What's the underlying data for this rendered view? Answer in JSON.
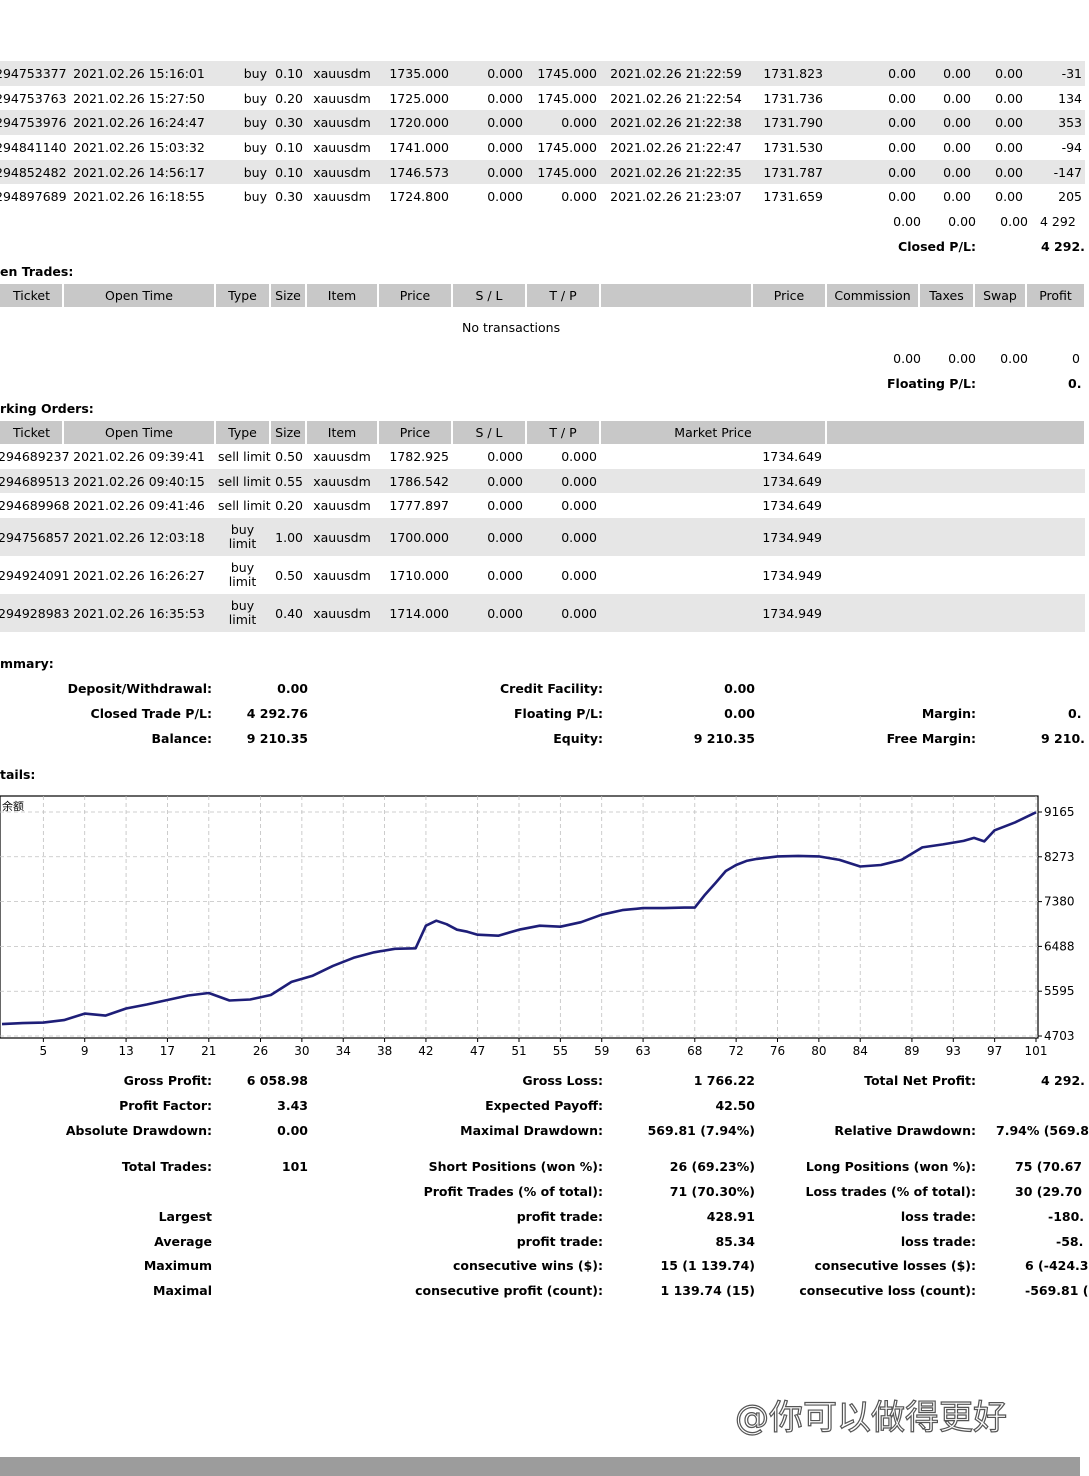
{
  "closed_trades": {
    "rows": [
      {
        "ticket": "294753377",
        "open_time": "2021.02.26 15:16:01",
        "type": "buy",
        "size": "0.10",
        "item": "xauusdm",
        "price": "1735.000",
        "sl": "0.000",
        "tp": "1745.000",
        "close_time": "2021.02.26 21:22:59",
        "close_price": "1731.823",
        "commission": "0.00",
        "taxes": "0.00",
        "swap": "0.00",
        "profit": "-31"
      },
      {
        "ticket": "294753763",
        "open_time": "2021.02.26 15:27:50",
        "type": "buy",
        "size": "0.20",
        "item": "xauusdm",
        "price": "1725.000",
        "sl": "0.000",
        "tp": "1745.000",
        "close_time": "2021.02.26 21:22:54",
        "close_price": "1731.736",
        "commission": "0.00",
        "taxes": "0.00",
        "swap": "0.00",
        "profit": "134"
      },
      {
        "ticket": "294753976",
        "open_time": "2021.02.26 16:24:47",
        "type": "buy",
        "size": "0.30",
        "item": "xauusdm",
        "price": "1720.000",
        "sl": "0.000",
        "tp": "0.000",
        "close_time": "2021.02.26 21:22:38",
        "close_price": "1731.790",
        "commission": "0.00",
        "taxes": "0.00",
        "swap": "0.00",
        "profit": "353"
      },
      {
        "ticket": "294841140",
        "open_time": "2021.02.26 15:03:32",
        "type": "buy",
        "size": "0.10",
        "item": "xauusdm",
        "price": "1741.000",
        "sl": "0.000",
        "tp": "1745.000",
        "close_time": "2021.02.26 21:22:47",
        "close_price": "1731.530",
        "commission": "0.00",
        "taxes": "0.00",
        "swap": "0.00",
        "profit": "-94"
      },
      {
        "ticket": "294852482",
        "open_time": "2021.02.26 14:56:17",
        "type": "buy",
        "size": "0.10",
        "item": "xauusdm",
        "price": "1746.573",
        "sl": "0.000",
        "tp": "1745.000",
        "close_time": "2021.02.26 21:22:35",
        "close_price": "1731.787",
        "commission": "0.00",
        "taxes": "0.00",
        "swap": "0.00",
        "profit": "-147"
      },
      {
        "ticket": "294897689",
        "open_time": "2021.02.26 16:18:55",
        "type": "buy",
        "size": "0.30",
        "item": "xauusdm",
        "price": "1724.800",
        "sl": "0.000",
        "tp": "0.000",
        "close_time": "2021.02.26 21:23:07",
        "close_price": "1731.659",
        "commission": "0.00",
        "taxes": "0.00",
        "swap": "0.00",
        "profit": "205"
      }
    ],
    "totals": {
      "commission": "0.00",
      "taxes": "0.00",
      "swap": "0.00",
      "profit": "4 292"
    },
    "closed_pl_label": "Closed P/L:",
    "closed_pl_value": "4 292."
  },
  "open_trades": {
    "title": "en Trades:",
    "headers": {
      "ticket": "Ticket",
      "open_time": "Open Time",
      "type": "Type",
      "size": "Size",
      "item": "Item",
      "price": "Price",
      "sl": "S / L",
      "tp": "T / P",
      "price2": "Price",
      "commission": "Commission",
      "taxes": "Taxes",
      "swap": "Swap",
      "profit": "Profit"
    },
    "empty_text": "No transactions",
    "totals": {
      "commission": "0.00",
      "taxes": "0.00",
      "swap": "0.00",
      "profit": "0"
    },
    "floating_pl_label": "Floating P/L:",
    "floating_pl_value": "0."
  },
  "working_orders": {
    "title": "rking Orders:",
    "headers": {
      "ticket": "Ticket",
      "open_time": "Open Time",
      "type": "Type",
      "size": "Size",
      "item": "Item",
      "price": "Price",
      "sl": "S / L",
      "tp": "T / P",
      "market_price": "Market Price"
    },
    "rows": [
      {
        "ticket": "294689237",
        "open_time": "2021.02.26 09:39:41",
        "type": "sell limit",
        "size": "0.50",
        "item": "xauusdm",
        "price": "1782.925",
        "sl": "0.000",
        "tp": "0.000",
        "market_price": "1734.649"
      },
      {
        "ticket": "294689513",
        "open_time": "2021.02.26 09:40:15",
        "type": "sell limit",
        "size": "0.55",
        "item": "xauusdm",
        "price": "1786.542",
        "sl": "0.000",
        "tp": "0.000",
        "market_price": "1734.649"
      },
      {
        "ticket": "294689968",
        "open_time": "2021.02.26 09:41:46",
        "type": "sell limit",
        "size": "0.20",
        "item": "xauusdm",
        "price": "1777.897",
        "sl": "0.000",
        "tp": "0.000",
        "market_price": "1734.649"
      },
      {
        "ticket": "294756857",
        "open_time": "2021.02.26 12:03:18",
        "type": "buy limit",
        "size": "1.00",
        "item": "xauusdm",
        "price": "1700.000",
        "sl": "0.000",
        "tp": "0.000",
        "market_price": "1734.949"
      },
      {
        "ticket": "294924091",
        "open_time": "2021.02.26 16:26:27",
        "type": "buy limit",
        "size": "0.50",
        "item": "xauusdm",
        "price": "1710.000",
        "sl": "0.000",
        "tp": "0.000",
        "market_price": "1734.949"
      },
      {
        "ticket": "294928983",
        "open_time": "2021.02.26 16:35:53",
        "type": "buy limit",
        "size": "0.40",
        "item": "xauusdm",
        "price": "1714.000",
        "sl": "0.000",
        "tp": "0.000",
        "market_price": "1734.949"
      }
    ]
  },
  "summary": {
    "title": "mmary:",
    "deposit_label": "Deposit/Withdrawal:",
    "deposit_value": "0.00",
    "credit_label": "Credit Facility:",
    "credit_value": "0.00",
    "closed_label": "Closed Trade P/L:",
    "closed_value": "4 292.76",
    "floating_label": "Floating P/L:",
    "floating_value": "0.00",
    "margin_label": "Margin:",
    "margin_value": "0.",
    "balance_label": "Balance:",
    "balance_value": "9 210.35",
    "equity_label": "Equity:",
    "equity_value": "9 210.35",
    "free_margin_label": "Free Margin:",
    "free_margin_value": "9 210."
  },
  "details": {
    "title": "tails:",
    "chart_corner_label": "余额"
  },
  "chart_data": {
    "type": "line",
    "title": "",
    "xlabel": "",
    "ylabel": "",
    "x_ticks": [
      "5",
      "9",
      "13",
      "17",
      "21",
      "26",
      "30",
      "34",
      "38",
      "42",
      "47",
      "51",
      "55",
      "59",
      "63",
      "68",
      "72",
      "76",
      "80",
      "84",
      "89",
      "93",
      "97",
      "101"
    ],
    "y_ticks": [
      "9165",
      "8273",
      "7380",
      "6488",
      "5595",
      "4703"
    ],
    "ylim": [
      4703,
      9165
    ],
    "xlim": [
      1,
      101
    ],
    "grid": true,
    "line_color": "#1e1e78",
    "series": [
      {
        "x": [
          1,
          3,
          5,
          7,
          9,
          11,
          13,
          15,
          17,
          19,
          21,
          23,
          25,
          27,
          29,
          31,
          33,
          35,
          37,
          39,
          41,
          42,
          43,
          44,
          45,
          46,
          47,
          49,
          51,
          53,
          55,
          57,
          59,
          61,
          63,
          65,
          67,
          68,
          69,
          70,
          71,
          72,
          73,
          74,
          76,
          78,
          80,
          82,
          84,
          86,
          88,
          90,
          92,
          94,
          95,
          96,
          97,
          98,
          99,
          101
        ],
        "y": [
          4940,
          4960,
          4970,
          5020,
          5150,
          5110,
          5250,
          5330,
          5420,
          5510,
          5560,
          5410,
          5430,
          5520,
          5780,
          5900,
          6100,
          6260,
          6370,
          6440,
          6450,
          6900,
          7000,
          6930,
          6820,
          6780,
          6720,
          6700,
          6820,
          6900,
          6880,
          6970,
          7120,
          7210,
          7250,
          7250,
          7260,
          7260,
          7520,
          7750,
          7990,
          8110,
          8190,
          8230,
          8280,
          8290,
          8280,
          8210,
          8080,
          8110,
          8210,
          8460,
          8520,
          8590,
          8650,
          8580,
          8800,
          8880,
          8960,
          9160
        ]
      }
    ]
  },
  "stats": {
    "gross_profit_label": "Gross Profit:",
    "gross_profit_value": "6 058.98",
    "gross_loss_label": "Gross Loss:",
    "gross_loss_value": "1 766.22",
    "total_net_label": "Total Net Profit:",
    "total_net_value": "4 292.",
    "profit_factor_label": "Profit Factor:",
    "profit_factor_value": "3.43",
    "expected_payoff_label": "Expected Payoff:",
    "expected_payoff_value": "42.50",
    "abs_dd_label": "Absolute Drawdown:",
    "abs_dd_value": "0.00",
    "max_dd_label": "Maximal Drawdown:",
    "max_dd_value": "569.81 (7.94%)",
    "rel_dd_label": "Relative Drawdown:",
    "rel_dd_value": "7.94% (569.8",
    "total_trades_label": "Total Trades:",
    "total_trades_value": "101",
    "short_label": "Short Positions (won %):",
    "short_value": "26 (69.23%)",
    "long_label": "Long Positions (won %):",
    "long_value": "75 (70.67",
    "profit_trades_label": "Profit Trades (% of total):",
    "profit_trades_value": "71 (70.30%)",
    "loss_trades_label": "Loss trades (% of total):",
    "loss_trades_value": "30 (29.70",
    "largest_label": "Largest",
    "largest_profit_label": "profit trade:",
    "largest_profit_value": "428.91",
    "largest_loss_label": "loss trade:",
    "largest_loss_value": "-180.",
    "average_label": "Average",
    "average_profit_label": "profit trade:",
    "average_profit_value": "85.34",
    "average_loss_label": "loss trade:",
    "average_loss_value": "-58.",
    "maximum_label": "Maximum",
    "max_cons_wins_label": "consecutive wins ($):",
    "max_cons_wins_value": "15 (1 139.74)",
    "max_cons_losses_label": "consecutive losses ($):",
    "max_cons_losses_value": "6 (-424.3",
    "maximal_label": "Maximal",
    "maximal_cons_profit_label": "consecutive profit (count):",
    "maximal_cons_profit_value": "1 139.74 (15)",
    "maximal_cons_loss_label": "consecutive loss (count):",
    "maximal_cons_loss_value": "-569.81 ("
  },
  "watermark": "@你可以做得更好"
}
